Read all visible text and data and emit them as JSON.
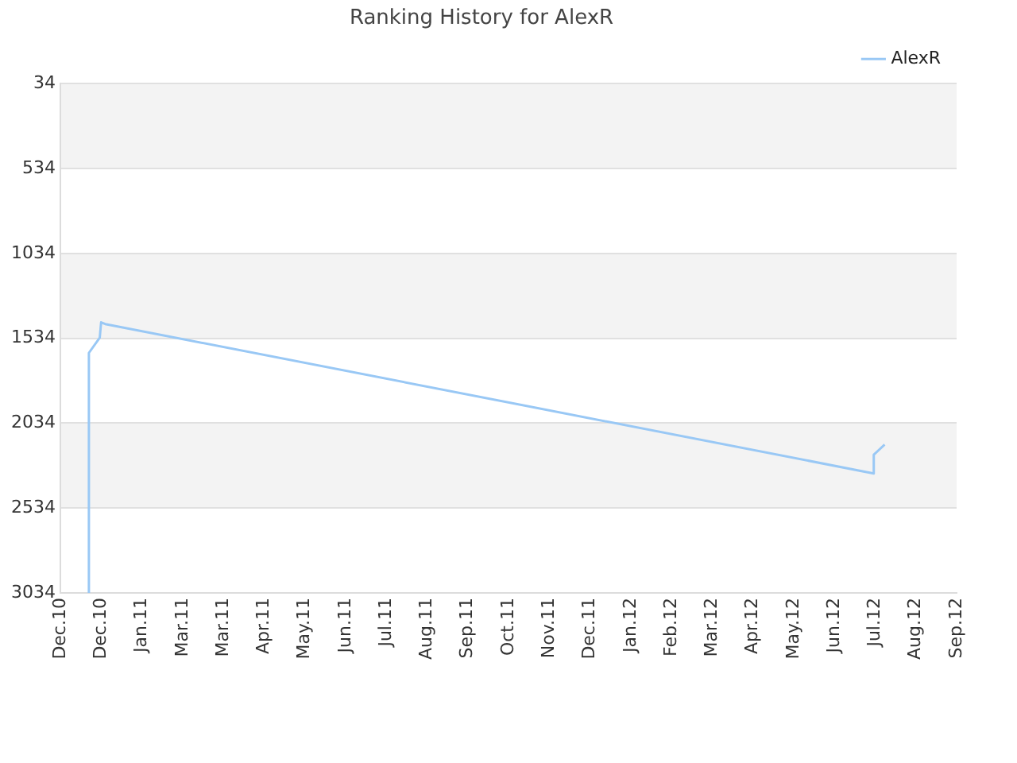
{
  "chart_data": {
    "type": "line",
    "title": "Ranking History for AlexR",
    "xlim": [
      "2010-12-01",
      "2012-09-21"
    ],
    "xticks": [
      {
        "value": "2010-12-01",
        "label": "Dec.10"
      },
      {
        "value": "2010-12-31",
        "label": "Dec.10"
      },
      {
        "value": "2011-01-30",
        "label": "Jan.11"
      },
      {
        "value": "2011-03-01",
        "label": "Mar.11"
      },
      {
        "value": "2011-03-31",
        "label": "Mar.11"
      },
      {
        "value": "2011-04-30",
        "label": "Apr.11"
      },
      {
        "value": "2011-05-30",
        "label": "May.11"
      },
      {
        "value": "2011-06-29",
        "label": "Jun.11"
      },
      {
        "value": "2011-07-29",
        "label": "Jul.11"
      },
      {
        "value": "2011-08-28",
        "label": "Aug.11"
      },
      {
        "value": "2011-09-27",
        "label": "Sep.11"
      },
      {
        "value": "2011-10-27",
        "label": "Oct.11"
      },
      {
        "value": "2011-11-26",
        "label": "Nov.11"
      },
      {
        "value": "2011-12-26",
        "label": "Dec.11"
      },
      {
        "value": "2012-01-25",
        "label": "Jan.12"
      },
      {
        "value": "2012-02-24",
        "label": "Feb.12"
      },
      {
        "value": "2012-03-25",
        "label": "Mar.12"
      },
      {
        "value": "2012-04-24",
        "label": "Apr.12"
      },
      {
        "value": "2012-05-24",
        "label": "May.12"
      },
      {
        "value": "2012-06-23",
        "label": "Jun.12"
      },
      {
        "value": "2012-07-23",
        "label": "Jul.12"
      },
      {
        "value": "2012-08-22",
        "label": "Aug.12"
      },
      {
        "value": "2012-09-21",
        "label": "Sep.12"
      }
    ],
    "ylim": [
      3034,
      34
    ],
    "yticks": [
      34,
      534,
      1034,
      1534,
      2034,
      2534,
      3034
    ],
    "grid": "y",
    "legend": "top right",
    "marker": "none",
    "series": [
      {
        "name": "AlexR",
        "color": "#99c8f5",
        "x": [
          "2010-12-22",
          "2010-12-22",
          "2010-12-30",
          "2010-12-31",
          "2011-01-03",
          "2012-07-22",
          "2012-07-22",
          "2012-07-26",
          "2012-07-30"
        ],
        "values": [
          3034,
          1620,
          1530,
          1440,
          1450,
          2330,
          2220,
          2190,
          2160
        ]
      }
    ]
  }
}
